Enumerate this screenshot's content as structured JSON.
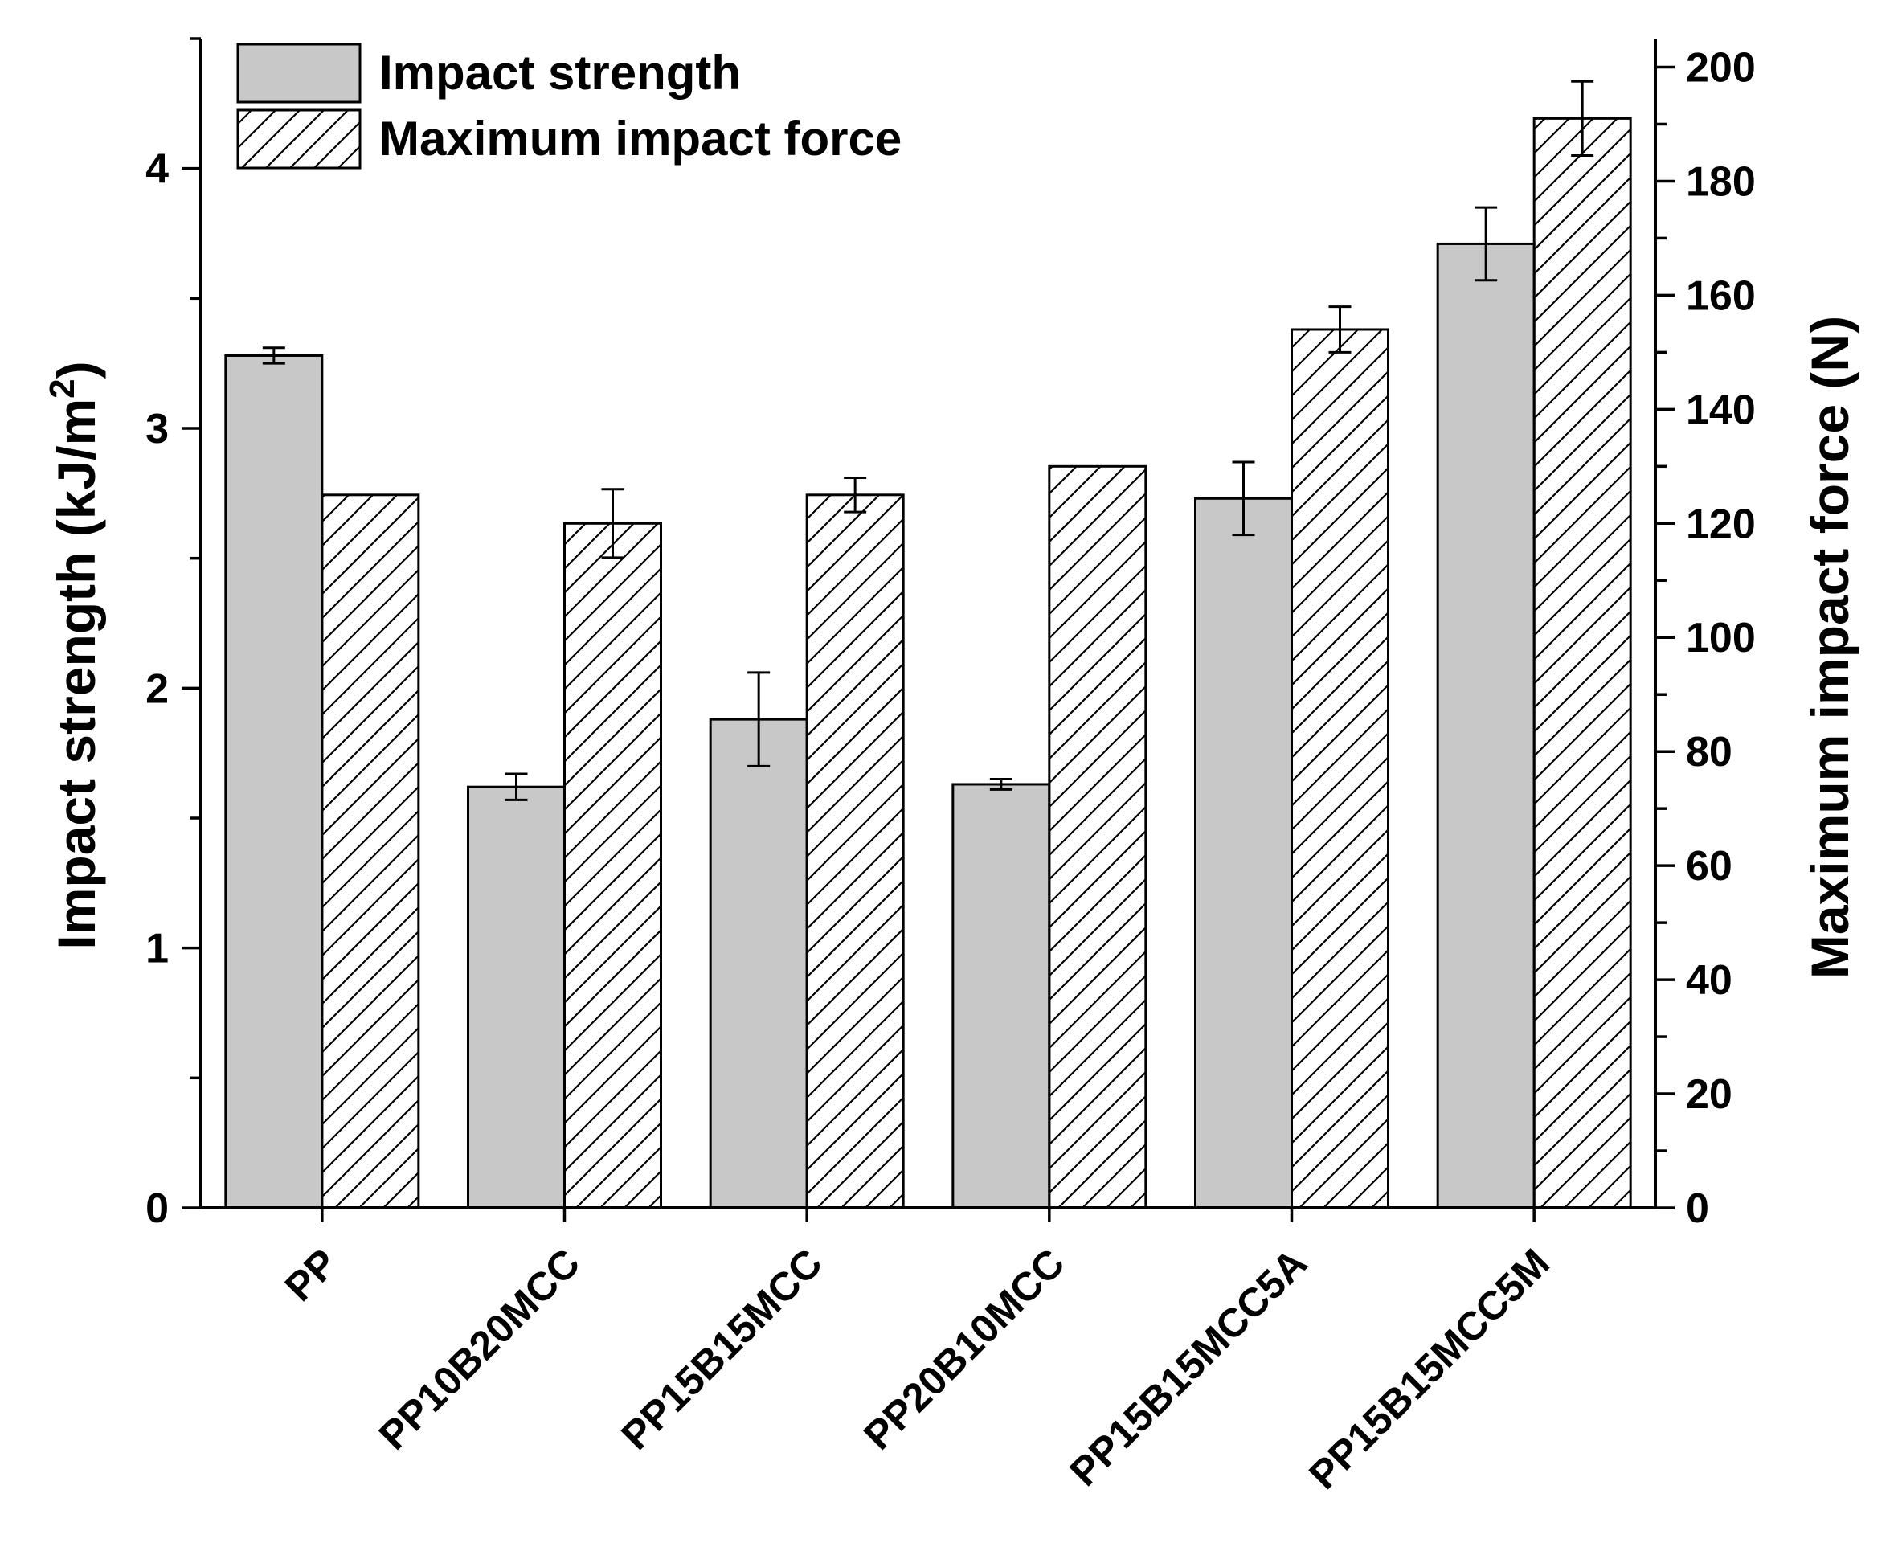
{
  "chart_data": {
    "type": "bar",
    "categories": [
      "PP",
      "PP10B20MCC",
      "PP15B15MCC",
      "PP20B10MCC",
      "PP15B15MCC5A",
      "PP15B15MCC5M"
    ],
    "series": [
      {
        "name": "Impact strength",
        "axis": "left",
        "fill": "solid",
        "color": "#c8c8c8",
        "values": [
          3.28,
          1.62,
          1.88,
          1.63,
          2.73,
          3.71
        ],
        "errors": [
          0.03,
          0.05,
          0.18,
          0.02,
          0.14,
          0.14
        ]
      },
      {
        "name": "Maximum impact force",
        "axis": "right",
        "fill": "hatched",
        "color": "#ffffff",
        "values": [
          125,
          120,
          125,
          130,
          154,
          191
        ],
        "errors": [
          0,
          6,
          3,
          0,
          4,
          6.5
        ]
      }
    ],
    "ylabel_left": "Impact strength (kJ/m",
    "ylabel_left_superscript": "2",
    "ylabel_left_close": ")",
    "ylabel_right": "Maximum impact force (N)",
    "ylim_left": [
      0,
      4.5
    ],
    "ylim_right": [
      0,
      205
    ],
    "left_ticks": [
      0,
      1,
      2,
      3,
      4
    ],
    "left_tick_labels": [
      "0",
      "1",
      "2",
      "3",
      "4"
    ],
    "right_ticks": [
      0,
      20,
      40,
      60,
      80,
      100,
      120,
      140,
      160,
      180,
      200
    ],
    "right_tick_labels": [
      "0",
      "20",
      "40",
      "60",
      "80",
      "100",
      "120",
      "140",
      "160",
      "180",
      "200"
    ],
    "legend_position": "top-left",
    "grid": false
  }
}
